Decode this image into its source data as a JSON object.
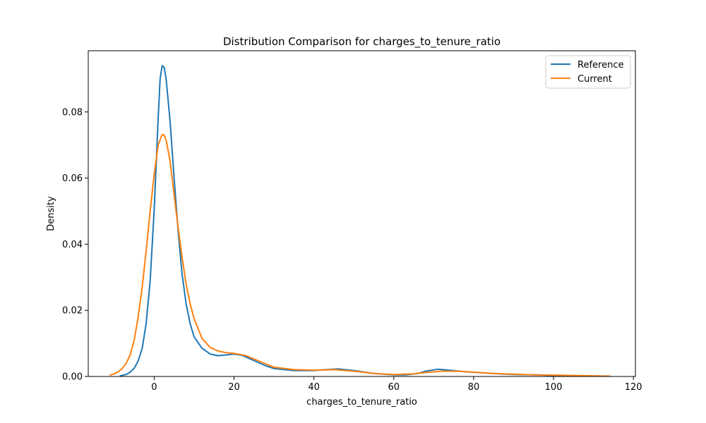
{
  "chart_data": {
    "type": "line",
    "title": "Distribution Comparison for charges_to_tenure_ratio",
    "xlabel": "charges_to_tenure_ratio",
    "ylabel": "Density",
    "xlim": [
      -16.5,
      120.5
    ],
    "ylim": [
      0.0,
      0.0985
    ],
    "xticks": [
      0,
      20,
      40,
      60,
      80,
      100,
      120
    ],
    "yticks": [
      0.0,
      0.02,
      0.04,
      0.06,
      0.08
    ],
    "xtick_labels": [
      "0",
      "20",
      "40",
      "60",
      "80",
      "100",
      "120"
    ],
    "ytick_labels": [
      "0.00",
      "0.02",
      "0.04",
      "0.06",
      "0.08"
    ],
    "grid": false,
    "legend_position": "top-right",
    "series": [
      {
        "name": "Reference",
        "color": "#1f77b4",
        "points": [
          [
            -8.5,
            0.0002
          ],
          [
            -7,
            0.0006
          ],
          [
            -6,
            0.0013
          ],
          [
            -5,
            0.0025
          ],
          [
            -4,
            0.0047
          ],
          [
            -3,
            0.0085
          ],
          [
            -2,
            0.016
          ],
          [
            -1,
            0.029
          ],
          [
            0,
            0.05
          ],
          [
            0.5,
            0.064
          ],
          [
            1,
            0.078
          ],
          [
            1.5,
            0.09
          ],
          [
            2,
            0.094
          ],
          [
            2.5,
            0.0935
          ],
          [
            3,
            0.09
          ],
          [
            4,
            0.077
          ],
          [
            5,
            0.06
          ],
          [
            6,
            0.044
          ],
          [
            7,
            0.031
          ],
          [
            8,
            0.022
          ],
          [
            9,
            0.016
          ],
          [
            10,
            0.012
          ],
          [
            12,
            0.0085
          ],
          [
            14,
            0.0068
          ],
          [
            16,
            0.0063
          ],
          [
            18,
            0.0065
          ],
          [
            20,
            0.0068
          ],
          [
            22,
            0.0064
          ],
          [
            25,
            0.0048
          ],
          [
            28,
            0.0032
          ],
          [
            30,
            0.0024
          ],
          [
            35,
            0.0018
          ],
          [
            40,
            0.0018
          ],
          [
            43,
            0.0021
          ],
          [
            46,
            0.0023
          ],
          [
            50,
            0.0018
          ],
          [
            55,
            0.0009
          ],
          [
            60,
            0.0005
          ],
          [
            63,
            0.0005
          ],
          [
            66,
            0.0009
          ],
          [
            68,
            0.0016
          ],
          [
            71,
            0.0022
          ],
          [
            74,
            0.0019
          ],
          [
            78,
            0.0014
          ],
          [
            85,
            0.0009
          ],
          [
            90,
            0.0006
          ],
          [
            95,
            0.0005
          ],
          [
            100,
            0.0003
          ],
          [
            105,
            0.0002
          ],
          [
            110,
            0.0001
          ],
          [
            114,
            0.0001
          ]
        ]
      },
      {
        "name": "Current",
        "color": "#ff7f0e",
        "points": [
          [
            -11,
            0.0004
          ],
          [
            -10,
            0.0008
          ],
          [
            -9,
            0.0014
          ],
          [
            -8,
            0.0024
          ],
          [
            -7,
            0.004
          ],
          [
            -6,
            0.0065
          ],
          [
            -5,
            0.011
          ],
          [
            -4,
            0.018
          ],
          [
            -3,
            0.027
          ],
          [
            -2,
            0.038
          ],
          [
            -1,
            0.05
          ],
          [
            0,
            0.061
          ],
          [
            1,
            0.07
          ],
          [
            2,
            0.0732
          ],
          [
            2.5,
            0.073
          ],
          [
            3,
            0.0715
          ],
          [
            4,
            0.065
          ],
          [
            5,
            0.055
          ],
          [
            6,
            0.045
          ],
          [
            7,
            0.036
          ],
          [
            8,
            0.028
          ],
          [
            9,
            0.022
          ],
          [
            10,
            0.0175
          ],
          [
            12,
            0.0115
          ],
          [
            14,
            0.0088
          ],
          [
            16,
            0.0077
          ],
          [
            18,
            0.0072
          ],
          [
            20,
            0.007
          ],
          [
            23,
            0.0063
          ],
          [
            26,
            0.0048
          ],
          [
            30,
            0.0028
          ],
          [
            35,
            0.0021
          ],
          [
            40,
            0.0019
          ],
          [
            45,
            0.0021
          ],
          [
            50,
            0.0016
          ],
          [
            55,
            0.0009
          ],
          [
            60,
            0.0006
          ],
          [
            65,
            0.0008
          ],
          [
            68,
            0.0012
          ],
          [
            72,
            0.0016
          ],
          [
            76,
            0.0016
          ],
          [
            80,
            0.0013
          ],
          [
            85,
            0.0009
          ],
          [
            90,
            0.0007
          ],
          [
            95,
            0.0005
          ],
          [
            100,
            0.0004
          ],
          [
            105,
            0.0003
          ],
          [
            110,
            0.0002
          ],
          [
            114,
            0.0001
          ]
        ]
      }
    ]
  }
}
